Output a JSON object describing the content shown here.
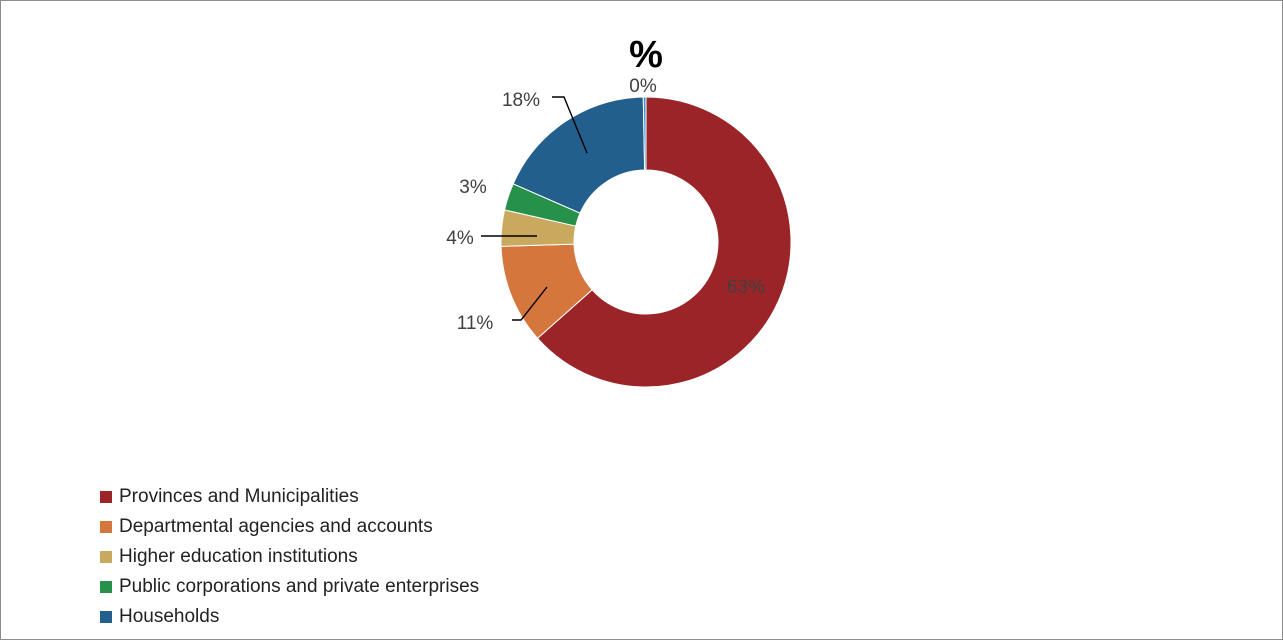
{
  "chart_data": {
    "type": "pie",
    "title": "%",
    "donut": true,
    "series": [
      {
        "name": "Provinces and Municipalities",
        "value": 63,
        "label": "63%",
        "color": "#9b2428"
      },
      {
        "name": "Departmental agencies and accounts",
        "value": 11,
        "label": "11%",
        "color": "#d5763c"
      },
      {
        "name": "Higher education institutions",
        "value": 4,
        "label": "4%",
        "color": "#c9a95d"
      },
      {
        "name": "Public corporations and private enterprises",
        "value": 3,
        "label": "3%",
        "color": "#25914a"
      },
      {
        "name": "Households",
        "value": 18,
        "label": "18%",
        "color": "#235f8c"
      },
      {
        "name": "",
        "value": 0.3,
        "label": "0%",
        "color": "#3a93c9"
      }
    ],
    "legend_position": "bottom-left"
  }
}
